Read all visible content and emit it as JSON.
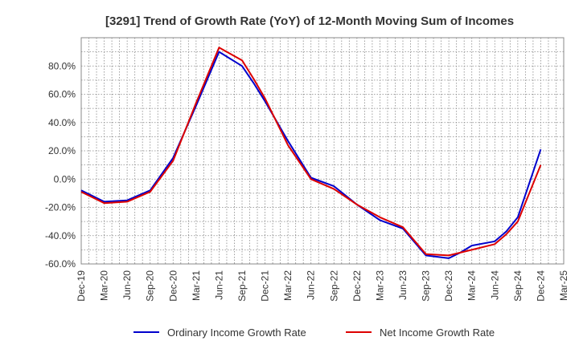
{
  "chart_data": {
    "type": "line",
    "title": "[3291]  Trend of Growth Rate (YoY) of 12-Month Moving Sum of Incomes",
    "xlabel": "",
    "ylabel": "",
    "ylim": [
      -60,
      100
    ],
    "yticks": [
      -60,
      -40,
      -20,
      0,
      20,
      40,
      60,
      80
    ],
    "ytick_labels": [
      "-60.0%",
      "-40.0%",
      "-20.0%",
      "0.0%",
      "20.0%",
      "40.0%",
      "60.0%",
      "80.0%"
    ],
    "x_labels": [
      "Dec-19",
      "Mar-20",
      "Jun-20",
      "Sep-20",
      "Dec-20",
      "Mar-21",
      "Jun-21",
      "Sep-21",
      "Dec-21",
      "Mar-22",
      "Jun-22",
      "Sep-22",
      "Dec-22",
      "Mar-23",
      "Jun-23",
      "Sep-23",
      "Dec-23",
      "Mar-24",
      "Jun-24",
      "Sep-24",
      "Dec-24",
      "Mar-25"
    ],
    "grid": true,
    "legend_position": "bottom",
    "series": [
      {
        "name": "Ordinary Income Growth Rate",
        "color": "#0000cc",
        "points": [
          [
            0,
            -8
          ],
          [
            1,
            -16
          ],
          [
            2,
            -15
          ],
          [
            3,
            -8
          ],
          [
            4,
            15
          ],
          [
            5,
            52
          ],
          [
            6,
            90
          ],
          [
            7,
            80
          ],
          [
            7.5,
            68
          ],
          [
            8,
            55
          ],
          [
            9,
            27
          ],
          [
            10,
            1
          ],
          [
            11,
            -5
          ],
          [
            12,
            -18
          ],
          [
            13,
            -29
          ],
          [
            14,
            -35
          ],
          [
            15,
            -54
          ],
          [
            16,
            -56
          ],
          [
            16.5,
            -52
          ],
          [
            17,
            -47
          ],
          [
            18,
            -44
          ],
          [
            18.5,
            -37
          ],
          [
            19,
            -27
          ],
          [
            20,
            21
          ]
        ]
      },
      {
        "name": "Net Income Growth Rate",
        "color": "#dd0000",
        "points": [
          [
            0,
            -9
          ],
          [
            1,
            -17
          ],
          [
            2,
            -16
          ],
          [
            3,
            -9
          ],
          [
            4,
            13
          ],
          [
            5,
            54
          ],
          [
            6,
            93
          ],
          [
            7,
            84
          ],
          [
            7.5,
            71
          ],
          [
            8,
            57
          ],
          [
            9,
            24
          ],
          [
            10,
            0
          ],
          [
            11,
            -7
          ],
          [
            12,
            -18
          ],
          [
            13,
            -27
          ],
          [
            14,
            -34
          ],
          [
            15,
            -53
          ],
          [
            16,
            -54
          ],
          [
            17,
            -50
          ],
          [
            18,
            -46
          ],
          [
            18.5,
            -39
          ],
          [
            19,
            -30
          ],
          [
            20,
            10
          ]
        ]
      }
    ]
  }
}
